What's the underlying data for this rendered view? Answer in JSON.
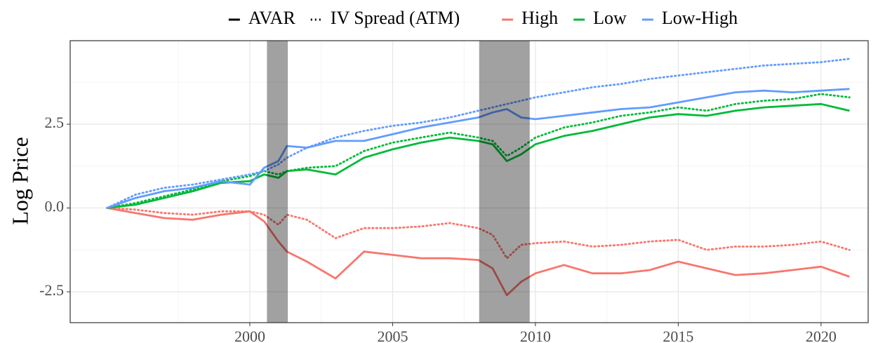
{
  "chart_data": {
    "type": "line",
    "y_label": "Log Price",
    "x": [
      1995,
      1996,
      1997,
      1998,
      1999,
      2000,
      2000.5,
      2001,
      2001.3,
      2002,
      2003,
      2004,
      2005,
      2006,
      2007,
      2008,
      2008.5,
      2009,
      2009.5,
      2010,
      2011,
      2012,
      2013,
      2014,
      2015,
      2016,
      2017,
      2018,
      2019,
      2020,
      2021
    ],
    "linetypes": [
      {
        "name": "AVAR",
        "dash": "solid"
      },
      {
        "name": "IV Spread (ATM)",
        "dash": "dotted"
      }
    ],
    "series": [
      {
        "name": "High",
        "color": "#F8766D",
        "lines": [
          {
            "values": [
              0,
              -0.15,
              -0.3,
              -0.35,
              -0.2,
              -0.1,
              -0.4,
              -1.0,
              -1.3,
              -1.6,
              -2.1,
              -1.3,
              -1.4,
              -1.5,
              -1.5,
              -1.55,
              -1.8,
              -2.6,
              -2.2,
              -1.95,
              -1.7,
              -1.95,
              -1.95,
              -1.85,
              -1.6,
              -1.8,
              -2.0,
              -1.95,
              -1.85,
              -1.75,
              -2.05
            ]
          },
          {
            "values": [
              0,
              -0.05,
              -0.15,
              -0.2,
              -0.1,
              -0.1,
              -0.2,
              -0.5,
              -0.2,
              -0.35,
              -0.9,
              -0.6,
              -0.6,
              -0.55,
              -0.45,
              -0.6,
              -0.8,
              -1.5,
              -1.1,
              -1.05,
              -1.0,
              -1.15,
              -1.1,
              -1.0,
              -0.95,
              -1.25,
              -1.15,
              -1.15,
              -1.1,
              -1.0,
              -1.25
            ]
          }
        ]
      },
      {
        "name": "Low",
        "color": "#00BA38",
        "lines": [
          {
            "values": [
              0,
              0.1,
              0.3,
              0.5,
              0.75,
              0.8,
              1.0,
              0.9,
              1.1,
              1.15,
              1.0,
              1.5,
              1.75,
              1.95,
              2.1,
              2.0,
              1.9,
              1.4,
              1.6,
              1.9,
              2.15,
              2.3,
              2.5,
              2.7,
              2.8,
              2.75,
              2.9,
              3.0,
              3.05,
              3.1,
              2.9
            ]
          },
          {
            "values": [
              0,
              0.15,
              0.35,
              0.55,
              0.8,
              0.95,
              1.1,
              1.0,
              1.1,
              1.2,
              1.25,
              1.7,
              1.95,
              2.1,
              2.25,
              2.1,
              2.0,
              1.55,
              1.8,
              2.1,
              2.4,
              2.55,
              2.75,
              2.85,
              3.0,
              2.9,
              3.1,
              3.2,
              3.25,
              3.4,
              3.3
            ]
          }
        ]
      },
      {
        "name": "Low-High",
        "color": "#619CFF",
        "lines": [
          {
            "values": [
              0,
              0.3,
              0.5,
              0.6,
              0.8,
              0.7,
              1.2,
              1.4,
              1.85,
              1.8,
              2.0,
              2.0,
              2.2,
              2.4,
              2.55,
              2.7,
              2.85,
              2.95,
              2.7,
              2.65,
              2.75,
              2.85,
              2.95,
              3.0,
              3.15,
              3.3,
              3.45,
              3.5,
              3.45,
              3.5,
              3.55
            ]
          },
          {
            "values": [
              0,
              0.4,
              0.6,
              0.7,
              0.85,
              1.0,
              1.1,
              1.3,
              1.5,
              1.8,
              2.1,
              2.3,
              2.45,
              2.55,
              2.7,
              2.9,
              3.0,
              3.1,
              3.2,
              3.3,
              3.45,
              3.6,
              3.7,
              3.85,
              3.95,
              4.05,
              4.15,
              4.25,
              4.3,
              4.35,
              4.45
            ]
          }
        ]
      }
    ],
    "recessions": [
      [
        2000.6,
        2001.33
      ],
      [
        2008.03,
        2009.8
      ]
    ],
    "recession_color": "#000000",
    "xlim": [
      1993.71,
      2021.65
    ],
    "ylim": [
      -3.42,
      4.99
    ],
    "xticks": [
      2000,
      2005,
      2010,
      2015,
      2020
    ],
    "yticks": [
      -2.5,
      {
        "value": 0,
        "label": "0.0"
      },
      2.5
    ],
    "grid": true
  }
}
